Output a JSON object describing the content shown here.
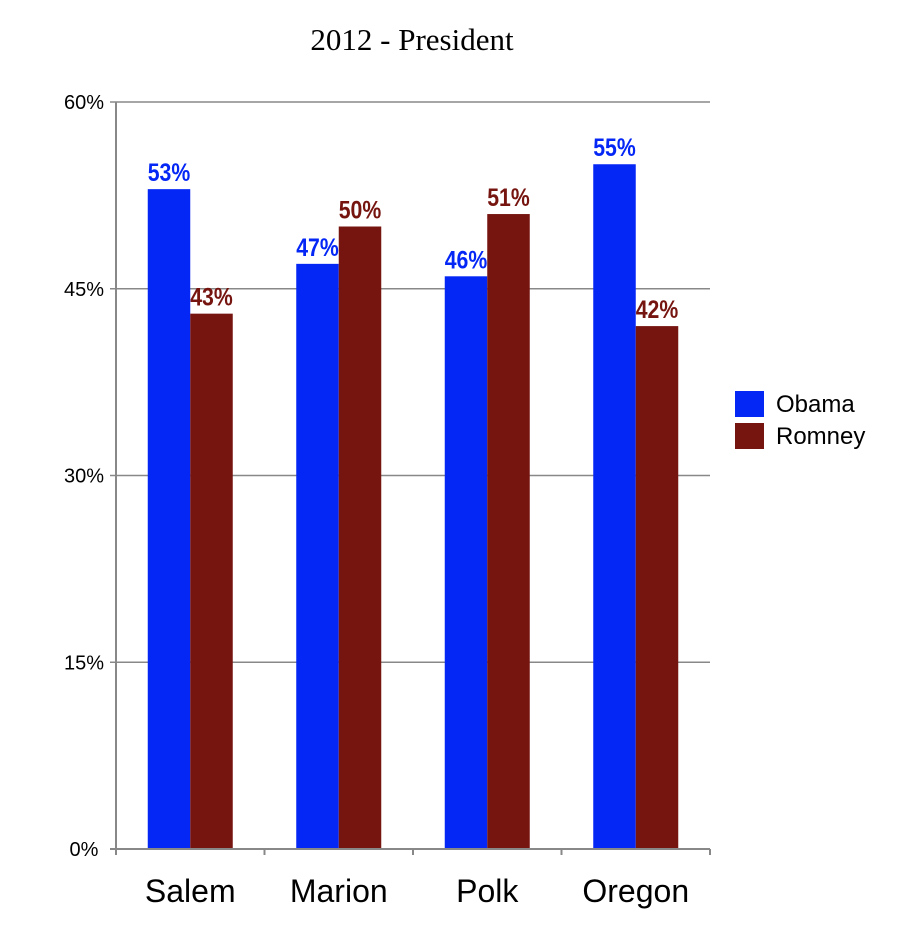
{
  "chart_data": {
    "type": "bar",
    "title": "2012 - President",
    "categories": [
      "Salem",
      "Marion",
      "Polk",
      "Oregon"
    ],
    "series": [
      {
        "name": "Obama",
        "values": [
          53,
          47,
          46,
          55
        ],
        "labels": [
          "53%",
          "47%",
          "46%",
          "55%"
        ],
        "color": "#0527F6"
      },
      {
        "name": "Romney",
        "values": [
          43,
          50,
          51,
          42
        ],
        "labels": [
          "43%",
          "50%",
          "51%",
          "42%"
        ],
        "color": "#761510"
      }
    ],
    "yticks": [
      "0%",
      "15%",
      "30%",
      "45%",
      "60%"
    ],
    "ytick_values": [
      0,
      15,
      30,
      45,
      60
    ],
    "ylim": [
      0,
      60
    ],
    "grid": true,
    "legend_position": "right",
    "xlabel": "",
    "ylabel": ""
  }
}
